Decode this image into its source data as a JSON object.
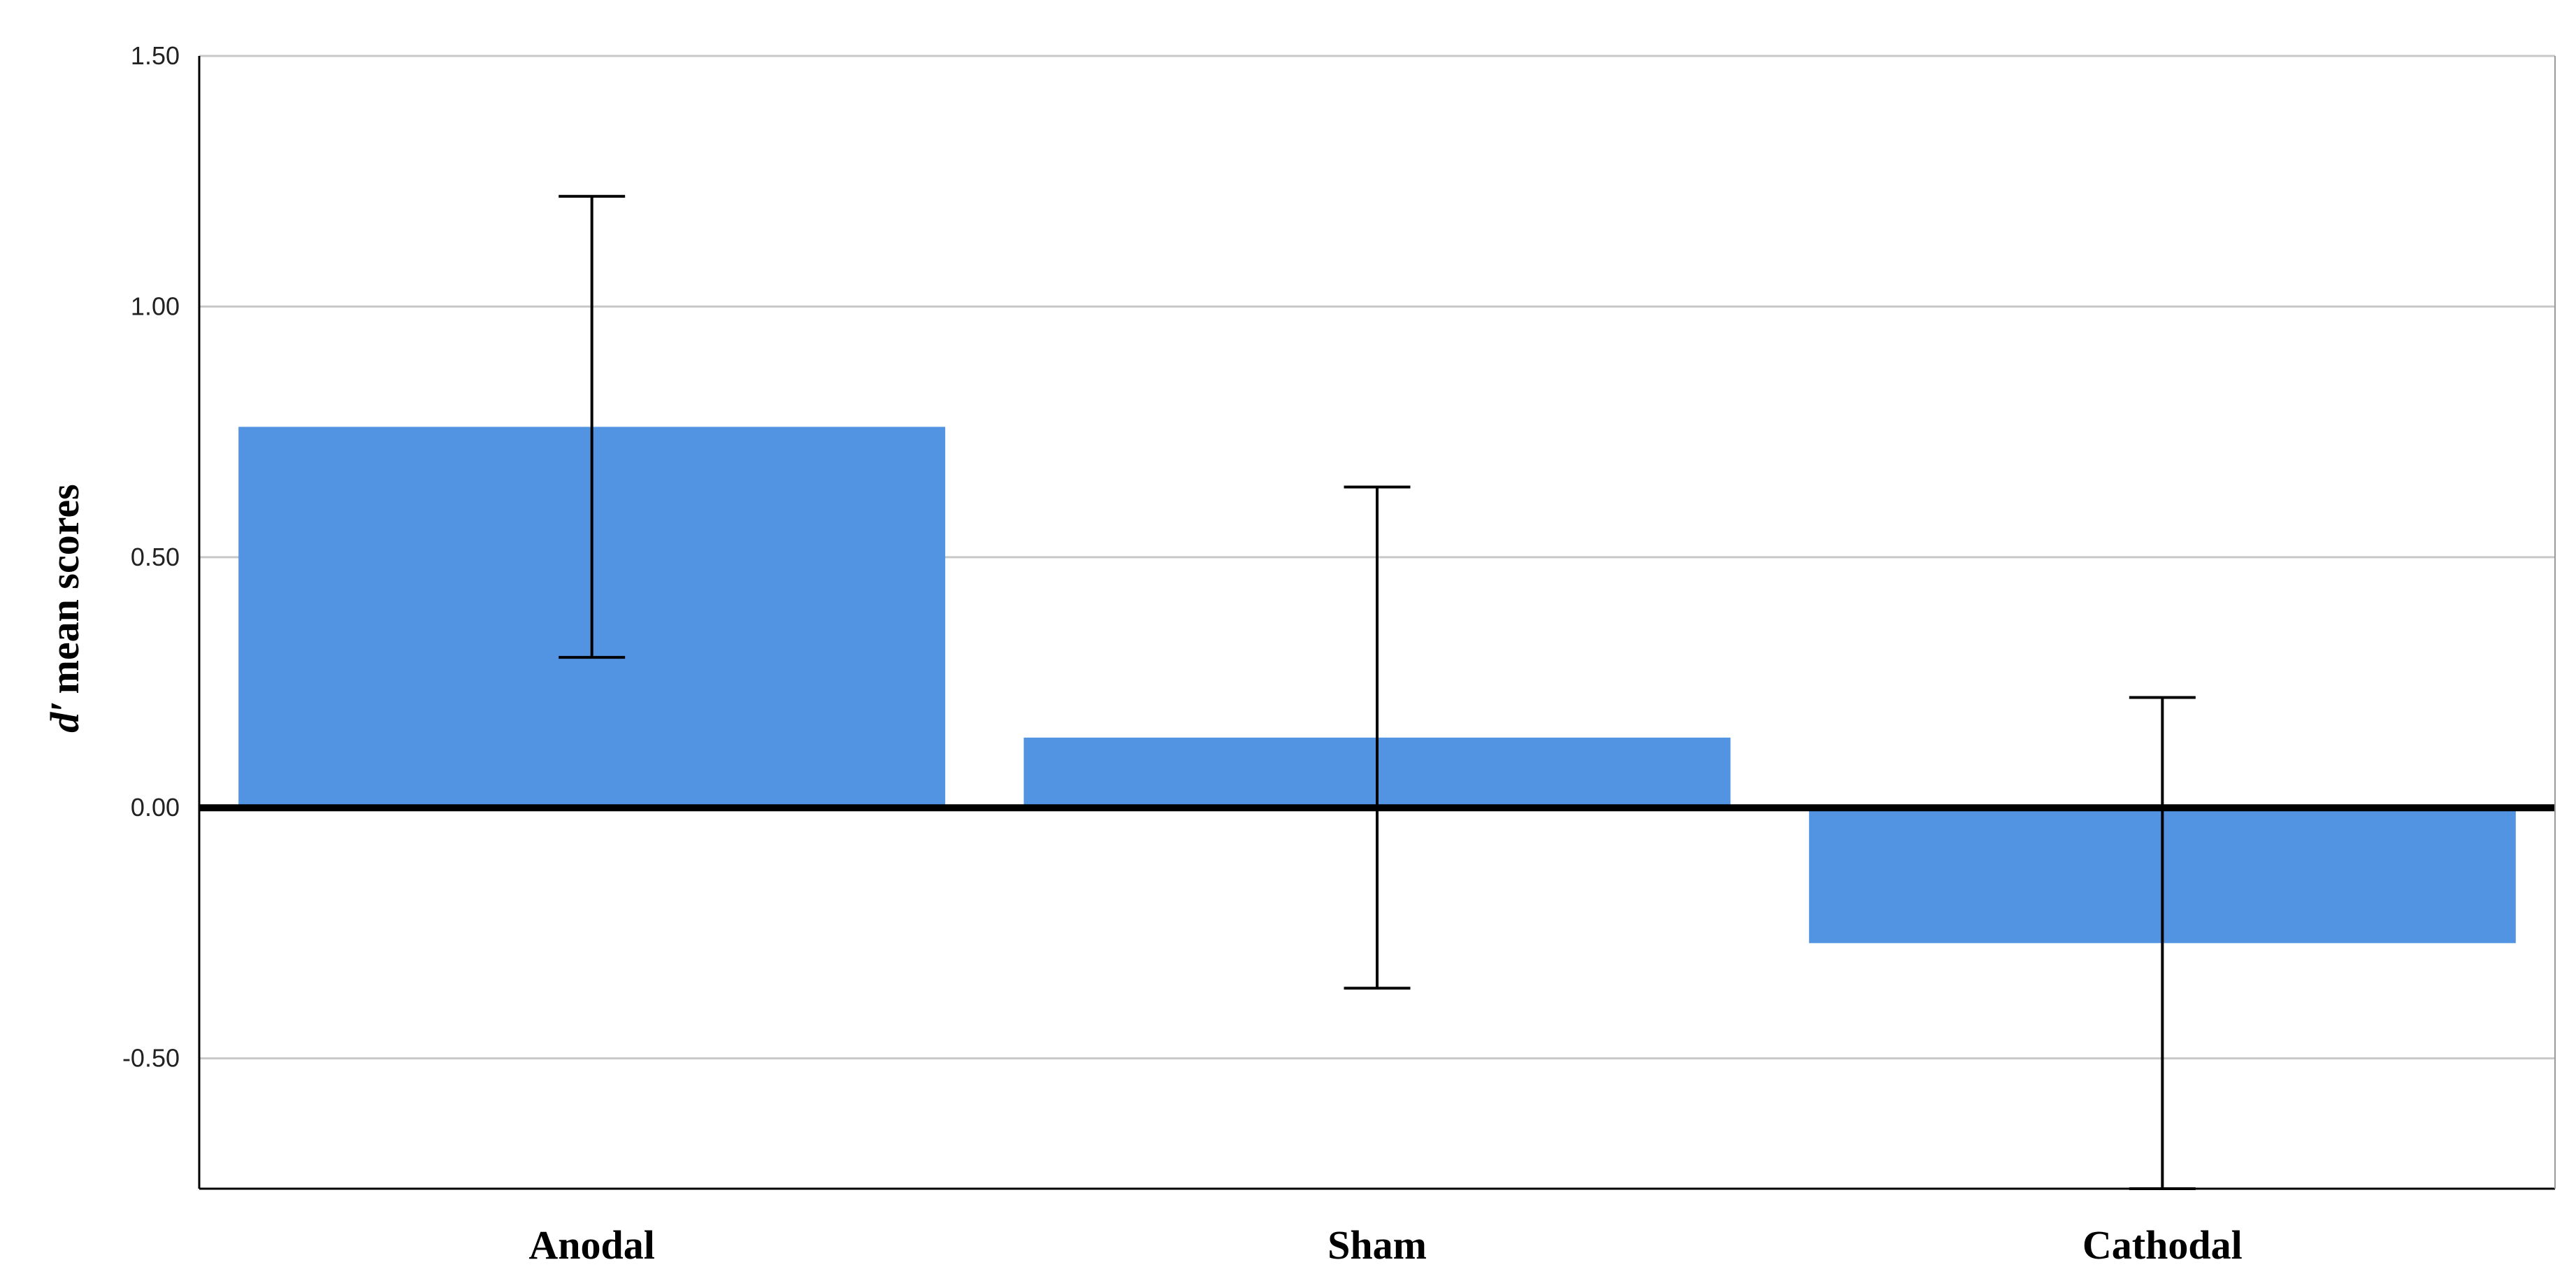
{
  "chart_data": {
    "type": "bar",
    "categories": [
      "Anodal",
      "Sham",
      "Cathodal"
    ],
    "values": [
      0.76,
      0.14,
      -0.27
    ],
    "error_bars": [
      {
        "low": 0.3,
        "high": 1.22
      },
      {
        "low": -0.36,
        "high": 0.64
      },
      {
        "low": -0.76,
        "high": 0.22
      }
    ],
    "ylabel_italic": "d′",
    "ylabel_rest": "mean scores",
    "ylim": [
      -0.76,
      1.5
    ],
    "yticks": [
      "1.50",
      "1.00",
      "0.50",
      "0.00",
      "-0.50"
    ],
    "ytick_values": [
      1.5,
      1.0,
      0.5,
      0.0,
      -0.5
    ],
    "grid": true,
    "bar_color": "#5294e2",
    "grid_color": "#c8c8c8",
    "zero_line_color": "#000000"
  }
}
